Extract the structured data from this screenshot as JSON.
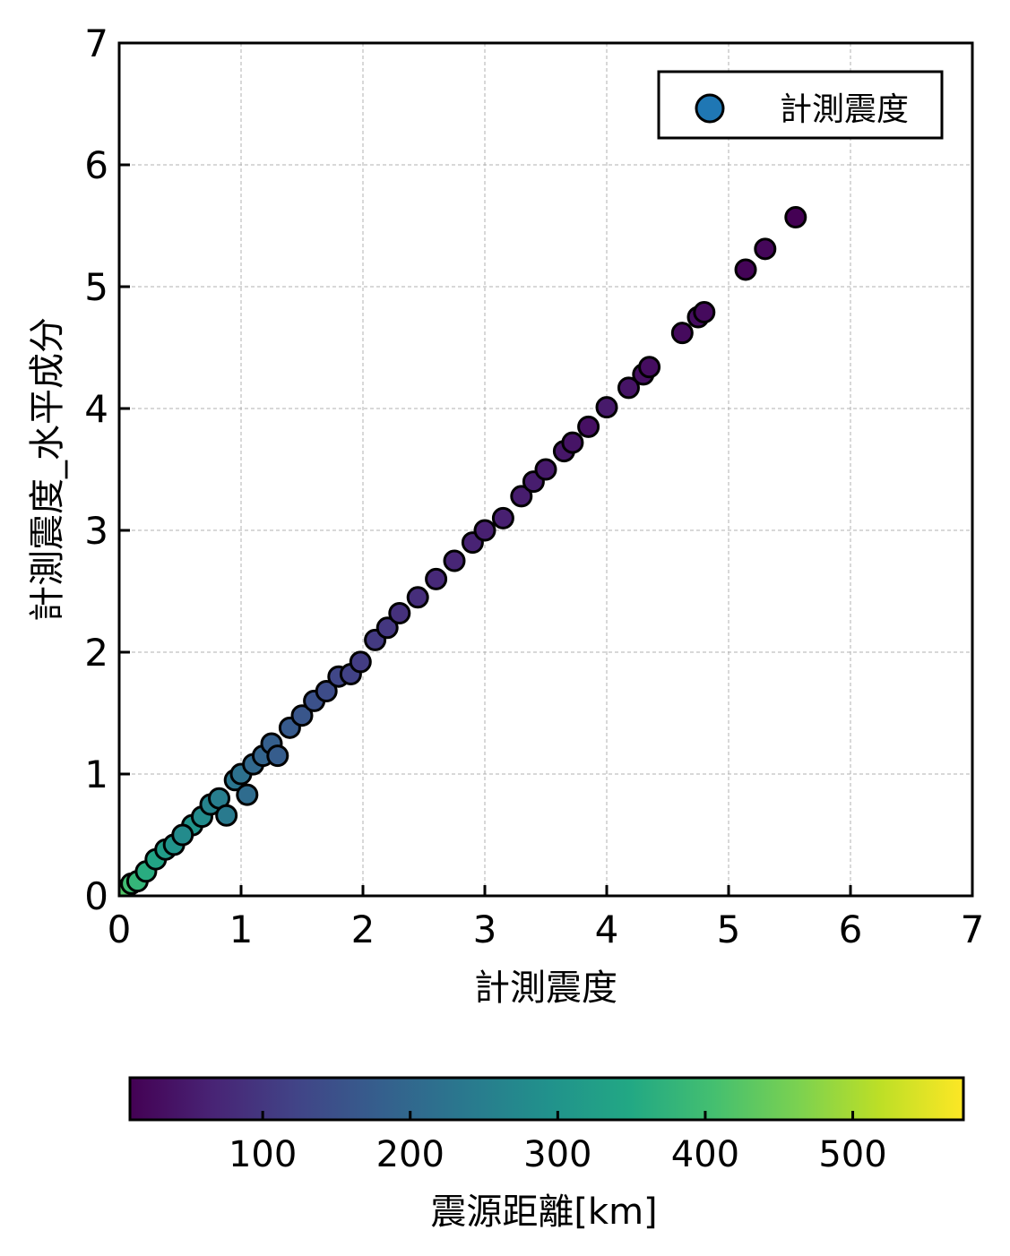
{
  "chart_data": {
    "type": "scatter",
    "xlabel": "計測震度",
    "ylabel": "計測震度_水平成分",
    "xlim": [
      0,
      7
    ],
    "ylim": [
      0,
      7
    ],
    "x_ticks": [
      "0",
      "1",
      "2",
      "3",
      "4",
      "5",
      "6",
      "7"
    ],
    "y_ticks": [
      "0",
      "1",
      "2",
      "3",
      "4",
      "5",
      "6",
      "7"
    ],
    "grid": true,
    "legend": {
      "position": "top-right",
      "label": "計測震度",
      "marker_color": "#1f77b4"
    },
    "colorbar": {
      "label": "震源距離[km]",
      "range": [
        10,
        575
      ],
      "ticks": [
        "100",
        "200",
        "300",
        "400",
        "500"
      ],
      "colormap": "viridis",
      "position": "bottom"
    },
    "series": [
      {
        "x": [
          0.05,
          0.1,
          0.15,
          0.22,
          0.3,
          0.38,
          0.45,
          0.52,
          0.6,
          0.68,
          0.75,
          0.82,
          0.88,
          0.95,
          1.0,
          1.05,
          1.1,
          1.18,
          1.25,
          1.3,
          1.4,
          1.5,
          1.6,
          1.7,
          1.8,
          1.9,
          1.98,
          2.1,
          2.2,
          2.3,
          2.45,
          2.6,
          2.75,
          2.9,
          3.0,
          3.15,
          3.3,
          3.4,
          3.5,
          3.65,
          3.72,
          3.85,
          4.0,
          4.18,
          4.3,
          4.35,
          4.62,
          4.75,
          4.8,
          5.14,
          5.3,
          5.55
        ],
        "y": [
          0.05,
          0.1,
          0.12,
          0.2,
          0.3,
          0.38,
          0.42,
          0.5,
          0.58,
          0.65,
          0.75,
          0.8,
          0.66,
          0.95,
          1.0,
          0.83,
          1.08,
          1.15,
          1.25,
          1.15,
          1.38,
          1.48,
          1.6,
          1.68,
          1.8,
          1.82,
          1.92,
          2.1,
          2.2,
          2.32,
          2.45,
          2.6,
          2.75,
          2.9,
          3.0,
          3.1,
          3.28,
          3.4,
          3.5,
          3.65,
          3.72,
          3.85,
          4.01,
          4.17,
          4.28,
          4.34,
          4.62,
          4.75,
          4.79,
          5.14,
          5.31,
          5.57
        ],
        "dist": [
          420,
          400,
          380,
          360,
          340,
          320,
          300,
          280,
          300,
          280,
          260,
          250,
          240,
          230,
          220,
          210,
          200,
          190,
          180,
          175,
          170,
          160,
          150,
          140,
          130,
          120,
          110,
          105,
          100,
          90,
          85,
          75,
          70,
          65,
          60,
          60,
          55,
          55,
          50,
          45,
          40,
          35,
          50,
          40,
          35,
          30,
          25,
          30,
          25,
          15,
          20,
          10
        ]
      }
    ]
  }
}
